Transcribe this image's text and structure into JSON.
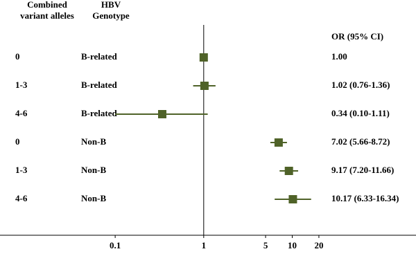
{
  "chart_data": {
    "type": "forest",
    "column_headers": {
      "alleles": [
        "Combined",
        "variant alleles"
      ],
      "genotype": [
        "HBV",
        "Genotype"
      ],
      "estimate": "OR (95% CI)"
    },
    "alleles": [
      "0",
      "1-3",
      "4-6",
      "0",
      "1-3",
      "4-6"
    ],
    "genotypes": [
      "B-related",
      "B-related",
      "B-related",
      "Non-B",
      "Non-B",
      "Non-B"
    ],
    "values": [
      1.0,
      1.02,
      0.34,
      7.02,
      9.17,
      10.17
    ],
    "lower": [
      null,
      0.76,
      0.1,
      5.66,
      7.2,
      6.33
    ],
    "upper": [
      null,
      1.36,
      1.11,
      8.72,
      11.66,
      16.34
    ],
    "value_labels": [
      "1.00",
      "1.02 (0.76-1.36)",
      "0.34 (0.10-1.11)",
      "7.02 (5.66-8.72)",
      "9.17 (7.20-11.66)",
      "10.17 (6.33-16.34)"
    ],
    "reference": 1,
    "xlim": [
      0.005,
      250
    ],
    "xticks": [
      0.1,
      1,
      5,
      10,
      20
    ],
    "log_x": true,
    "color": "#4f6228"
  }
}
